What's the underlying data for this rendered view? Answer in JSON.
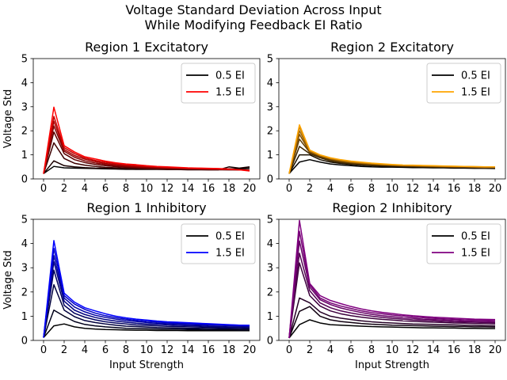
{
  "figure": {
    "title_line1": "Voltage Standard Deviation Across Input",
    "title_line2": "While Modifying Feedback EI Ratio"
  },
  "chart_data": [
    {
      "type": "line",
      "title": "Region 1 Excitatory",
      "xlabel": "",
      "ylabel": "Voltage Std",
      "xlim": [
        -1,
        21
      ],
      "ylim": [
        0,
        5
      ],
      "xticks": [
        0,
        2,
        4,
        6,
        8,
        10,
        12,
        14,
        16,
        18,
        20
      ],
      "yticks": [
        0,
        1,
        2,
        3,
        4,
        5
      ],
      "legend": {
        "position": "top-right",
        "entries": [
          {
            "label": "0.5 EI",
            "color": "#000000"
          },
          {
            "label": "1.5 EI",
            "color": "#ff0000"
          }
        ]
      },
      "x": [
        0,
        1,
        2,
        3,
        4,
        5,
        6,
        7,
        8,
        9,
        10,
        11,
        12,
        13,
        14,
        15,
        16,
        17,
        18,
        19,
        20
      ],
      "series": [
        {
          "color": "#000000",
          "values": [
            0.22,
            0.52,
            0.46,
            0.45,
            0.44,
            0.43,
            0.42,
            0.41,
            0.4,
            0.4,
            0.4,
            0.4,
            0.4,
            0.4,
            0.4,
            0.4,
            0.4,
            0.4,
            0.42,
            0.42,
            0.45
          ]
        },
        {
          "color": "#1a0000",
          "values": [
            0.22,
            0.75,
            0.55,
            0.5,
            0.47,
            0.45,
            0.44,
            0.42,
            0.41,
            0.4,
            0.4,
            0.4,
            0.39,
            0.39,
            0.38,
            0.38,
            0.38,
            0.38,
            0.5,
            0.45,
            0.5
          ]
        },
        {
          "color": "#3d0000",
          "values": [
            0.22,
            1.5,
            0.85,
            0.65,
            0.57,
            0.52,
            0.48,
            0.46,
            0.44,
            0.43,
            0.42,
            0.41,
            0.4,
            0.4,
            0.39,
            0.39,
            0.38,
            0.38,
            0.38,
            0.38,
            0.38
          ]
        },
        {
          "color": "#5e0000",
          "values": [
            0.22,
            1.95,
            1.05,
            0.8,
            0.68,
            0.6,
            0.55,
            0.51,
            0.48,
            0.46,
            0.44,
            0.43,
            0.42,
            0.41,
            0.4,
            0.4,
            0.39,
            0.39,
            0.38,
            0.38,
            0.37
          ]
        },
        {
          "color": "#800000",
          "values": [
            0.22,
            2.2,
            1.15,
            0.9,
            0.75,
            0.66,
            0.6,
            0.55,
            0.52,
            0.49,
            0.47,
            0.45,
            0.44,
            0.43,
            0.42,
            0.41,
            0.4,
            0.4,
            0.39,
            0.38,
            0.37
          ]
        },
        {
          "color": "#a30000",
          "values": [
            0.22,
            2.4,
            1.22,
            0.97,
            0.82,
            0.72,
            0.64,
            0.59,
            0.55,
            0.52,
            0.5,
            0.48,
            0.46,
            0.45,
            0.43,
            0.42,
            0.41,
            0.4,
            0.39,
            0.38,
            0.36
          ]
        },
        {
          "color": "#c40000",
          "values": [
            0.22,
            2.6,
            1.3,
            1.05,
            0.87,
            0.77,
            0.69,
            0.63,
            0.58,
            0.55,
            0.52,
            0.5,
            0.48,
            0.46,
            0.45,
            0.44,
            0.43,
            0.42,
            0.4,
            0.38,
            0.35
          ]
        },
        {
          "color": "#ff0000",
          "values": [
            0.22,
            2.98,
            1.38,
            1.12,
            0.92,
            0.83,
            0.74,
            0.67,
            0.62,
            0.59,
            0.55,
            0.52,
            0.5,
            0.48,
            0.46,
            0.45,
            0.44,
            0.43,
            0.41,
            0.38,
            0.33
          ]
        }
      ]
    },
    {
      "type": "line",
      "title": "Region 2 Excitatory",
      "xlabel": "",
      "ylabel": "",
      "xlim": [
        -1,
        21
      ],
      "ylim": [
        0,
        5
      ],
      "xticks": [
        0,
        2,
        4,
        6,
        8,
        10,
        12,
        14,
        16,
        18,
        20
      ],
      "yticks": [
        0,
        1,
        2,
        3,
        4,
        5
      ],
      "legend": {
        "position": "top-right",
        "entries": [
          {
            "label": "0.5 EI",
            "color": "#000000"
          },
          {
            "label": "1.5 EI",
            "color": "#ffa500"
          }
        ]
      },
      "x": [
        0,
        1,
        2,
        3,
        4,
        5,
        6,
        7,
        8,
        9,
        10,
        11,
        12,
        13,
        14,
        15,
        16,
        17,
        18,
        19,
        20
      ],
      "series": [
        {
          "color": "#000000",
          "values": [
            0.22,
            0.7,
            0.8,
            0.7,
            0.62,
            0.58,
            0.55,
            0.52,
            0.5,
            0.49,
            0.49,
            0.48,
            0.47,
            0.47,
            0.46,
            0.46,
            0.45,
            0.45,
            0.44,
            0.44,
            0.43
          ]
        },
        {
          "color": "#1a1000",
          "values": [
            0.22,
            1.0,
            1.0,
            0.8,
            0.7,
            0.64,
            0.6,
            0.57,
            0.55,
            0.53,
            0.52,
            0.51,
            0.5,
            0.49,
            0.48,
            0.48,
            0.47,
            0.47,
            0.46,
            0.45,
            0.45
          ]
        },
        {
          "color": "#3d2600",
          "values": [
            0.22,
            1.35,
            1.05,
            0.88,
            0.75,
            0.68,
            0.63,
            0.6,
            0.57,
            0.55,
            0.54,
            0.52,
            0.51,
            0.5,
            0.49,
            0.49,
            0.48,
            0.48,
            0.47,
            0.46,
            0.46
          ]
        },
        {
          "color": "#5e3b00",
          "values": [
            0.22,
            1.65,
            1.1,
            0.92,
            0.79,
            0.71,
            0.66,
            0.62,
            0.59,
            0.57,
            0.55,
            0.54,
            0.53,
            0.52,
            0.51,
            0.5,
            0.49,
            0.49,
            0.48,
            0.47,
            0.47
          ]
        },
        {
          "color": "#804f00",
          "values": [
            0.22,
            1.85,
            1.12,
            0.95,
            0.82,
            0.74,
            0.68,
            0.64,
            0.61,
            0.59,
            0.57,
            0.55,
            0.54,
            0.53,
            0.52,
            0.51,
            0.5,
            0.5,
            0.49,
            0.48,
            0.48
          ]
        },
        {
          "color": "#a36600",
          "values": [
            0.22,
            2.0,
            1.15,
            0.97,
            0.84,
            0.76,
            0.7,
            0.66,
            0.63,
            0.6,
            0.58,
            0.56,
            0.55,
            0.54,
            0.53,
            0.52,
            0.51,
            0.51,
            0.5,
            0.49,
            0.49
          ]
        },
        {
          "color": "#c47e00",
          "values": [
            0.22,
            2.15,
            1.18,
            0.99,
            0.86,
            0.78,
            0.72,
            0.68,
            0.64,
            0.61,
            0.59,
            0.57,
            0.56,
            0.55,
            0.54,
            0.53,
            0.52,
            0.52,
            0.51,
            0.5,
            0.5
          ]
        },
        {
          "color": "#ffa500",
          "values": [
            0.22,
            2.25,
            1.2,
            1.0,
            0.88,
            0.8,
            0.74,
            0.7,
            0.66,
            0.63,
            0.6,
            0.58,
            0.57,
            0.56,
            0.55,
            0.54,
            0.53,
            0.52,
            0.51,
            0.5,
            0.5
          ]
        }
      ]
    },
    {
      "type": "line",
      "title": "Region 1 Inhibitory",
      "xlabel": "Input Strength",
      "ylabel": "Voltage Std",
      "xlim": [
        -1,
        21
      ],
      "ylim": [
        0,
        5
      ],
      "xticks": [
        0,
        2,
        4,
        6,
        8,
        10,
        12,
        14,
        16,
        18,
        20
      ],
      "yticks": [
        0,
        1,
        2,
        3,
        4,
        5
      ],
      "legend": {
        "position": "top-right",
        "entries": [
          {
            "label": "0.5 EI",
            "color": "#000000"
          },
          {
            "label": "1.5 EI",
            "color": "#0000ff"
          }
        ]
      },
      "x": [
        0,
        1,
        2,
        3,
        4,
        5,
        6,
        7,
        8,
        9,
        10,
        11,
        12,
        13,
        14,
        15,
        16,
        17,
        18,
        19,
        20
      ],
      "series": [
        {
          "color": "#000000",
          "values": [
            0.12,
            0.6,
            0.68,
            0.56,
            0.5,
            0.47,
            0.45,
            0.44,
            0.43,
            0.42,
            0.42,
            0.41,
            0.41,
            0.41,
            0.4,
            0.4,
            0.4,
            0.4,
            0.4,
            0.4,
            0.4
          ]
        },
        {
          "color": "#00001a",
          "values": [
            0.12,
            1.25,
            1.0,
            0.78,
            0.66,
            0.6,
            0.56,
            0.53,
            0.5,
            0.49,
            0.48,
            0.47,
            0.46,
            0.46,
            0.45,
            0.45,
            0.44,
            0.44,
            0.44,
            0.43,
            0.43
          ]
        },
        {
          "color": "#00003d",
          "values": [
            0.12,
            2.3,
            1.25,
            0.98,
            0.82,
            0.74,
            0.68,
            0.63,
            0.59,
            0.57,
            0.55,
            0.53,
            0.52,
            0.51,
            0.5,
            0.5,
            0.49,
            0.48,
            0.48,
            0.47,
            0.47
          ]
        },
        {
          "color": "#00005e",
          "values": [
            0.12,
            2.9,
            1.45,
            1.12,
            0.96,
            0.85,
            0.77,
            0.72,
            0.68,
            0.64,
            0.62,
            0.6,
            0.58,
            0.57,
            0.56,
            0.55,
            0.54,
            0.53,
            0.52,
            0.52,
            0.51
          ]
        },
        {
          "color": "#000080",
          "values": [
            0.12,
            3.25,
            1.62,
            1.25,
            1.07,
            0.95,
            0.86,
            0.8,
            0.75,
            0.71,
            0.68,
            0.66,
            0.64,
            0.62,
            0.61,
            0.6,
            0.58,
            0.57,
            0.56,
            0.56,
            0.55
          ]
        },
        {
          "color": "#0000a3",
          "values": [
            0.12,
            3.5,
            1.75,
            1.38,
            1.18,
            1.04,
            0.95,
            0.88,
            0.82,
            0.78,
            0.74,
            0.71,
            0.69,
            0.67,
            0.66,
            0.64,
            0.63,
            0.62,
            0.61,
            0.6,
            0.59
          ]
        },
        {
          "color": "#0000c4",
          "values": [
            0.12,
            3.8,
            1.85,
            1.5,
            1.28,
            1.13,
            1.02,
            0.94,
            0.88,
            0.83,
            0.79,
            0.76,
            0.73,
            0.71,
            0.69,
            0.68,
            0.66,
            0.65,
            0.64,
            0.63,
            0.62
          ]
        },
        {
          "color": "#0000ff",
          "values": [
            0.12,
            4.12,
            1.95,
            1.58,
            1.35,
            1.22,
            1.1,
            1.0,
            0.93,
            0.88,
            0.84,
            0.8,
            0.77,
            0.75,
            0.73,
            0.71,
            0.69,
            0.67,
            0.65,
            0.63,
            0.62
          ]
        }
      ]
    },
    {
      "type": "line",
      "title": "Region 2 Inhibitory",
      "xlabel": "Input Strength",
      "ylabel": "",
      "xlim": [
        -1,
        21
      ],
      "ylim": [
        0,
        5
      ],
      "xticks": [
        0,
        2,
        4,
        6,
        8,
        10,
        12,
        14,
        16,
        18,
        20
      ],
      "yticks": [
        0,
        1,
        2,
        3,
        4,
        5
      ],
      "legend": {
        "position": "top-right",
        "entries": [
          {
            "label": "0.5 EI",
            "color": "#000000"
          },
          {
            "label": "1.5 EI",
            "color": "#800080"
          }
        ]
      },
      "x": [
        0,
        1,
        2,
        3,
        4,
        5,
        6,
        7,
        8,
        9,
        10,
        11,
        12,
        13,
        14,
        15,
        16,
        17,
        18,
        19,
        20
      ],
      "series": [
        {
          "color": "#000000",
          "values": [
            0.1,
            0.65,
            0.85,
            0.72,
            0.65,
            0.63,
            0.61,
            0.59,
            0.57,
            0.56,
            0.55,
            0.54,
            0.53,
            0.52,
            0.52,
            0.51,
            0.51,
            0.5,
            0.5,
            0.49,
            0.49
          ]
        },
        {
          "color": "#100010",
          "values": [
            0.1,
            1.2,
            1.4,
            1.0,
            0.85,
            0.78,
            0.74,
            0.7,
            0.67,
            0.65,
            0.63,
            0.62,
            0.61,
            0.6,
            0.59,
            0.58,
            0.57,
            0.57,
            0.56,
            0.56,
            0.55
          ]
        },
        {
          "color": "#260026",
          "values": [
            0.1,
            1.75,
            1.55,
            1.18,
            1.0,
            0.92,
            0.86,
            0.81,
            0.77,
            0.74,
            0.72,
            0.7,
            0.68,
            0.67,
            0.66,
            0.65,
            0.64,
            0.63,
            0.62,
            0.61,
            0.6
          ]
        },
        {
          "color": "#3d003d",
          "values": [
            0.1,
            3.2,
            1.85,
            1.42,
            1.22,
            1.1,
            1.02,
            0.96,
            0.91,
            0.87,
            0.84,
            0.81,
            0.79,
            0.77,
            0.75,
            0.74,
            0.72,
            0.71,
            0.7,
            0.69,
            0.68
          ]
        },
        {
          "color": "#520052",
          "values": [
            0.1,
            3.6,
            2.05,
            1.55,
            1.35,
            1.22,
            1.13,
            1.06,
            1.0,
            0.95,
            0.91,
            0.88,
            0.85,
            0.83,
            0.81,
            0.79,
            0.77,
            0.76,
            0.75,
            0.74,
            0.73
          ]
        },
        {
          "color": "#660066",
          "values": [
            0.1,
            4.1,
            2.2,
            1.68,
            1.48,
            1.34,
            1.24,
            1.15,
            1.08,
            1.02,
            0.98,
            0.94,
            0.91,
            0.88,
            0.86,
            0.84,
            0.82,
            0.8,
            0.79,
            0.78,
            0.77
          ]
        },
        {
          "color": "#730073",
          "values": [
            0.1,
            4.5,
            2.3,
            1.75,
            1.55,
            1.42,
            1.32,
            1.22,
            1.15,
            1.1,
            1.05,
            1.01,
            0.97,
            0.94,
            0.91,
            0.89,
            0.87,
            0.85,
            0.84,
            0.83,
            0.82
          ]
        },
        {
          "color": "#800080",
          "values": [
            0.1,
            4.95,
            2.35,
            1.85,
            1.65,
            1.52,
            1.4,
            1.3,
            1.22,
            1.16,
            1.11,
            1.06,
            1.02,
            0.99,
            0.96,
            0.94,
            0.92,
            0.9,
            0.88,
            0.87,
            0.86
          ]
        }
      ]
    }
  ]
}
